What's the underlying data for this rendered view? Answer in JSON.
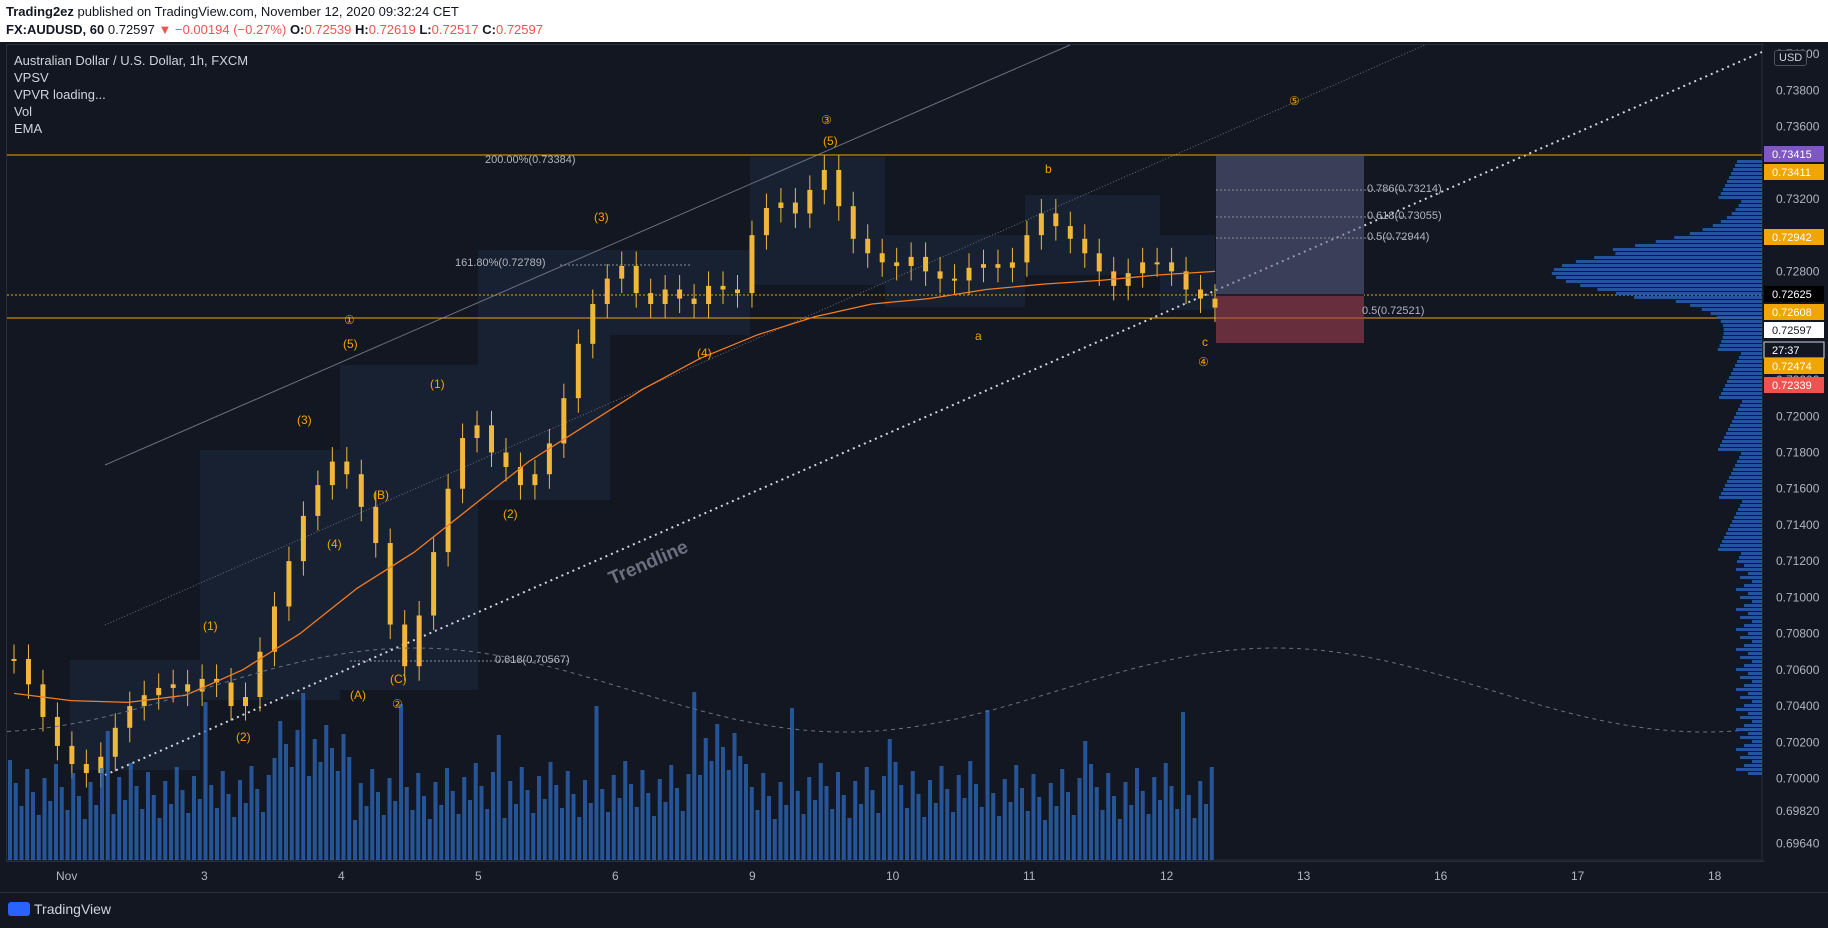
{
  "header": {
    "publisher": "Trading2ez",
    "published_text": "published on TradingView.com, November 12, 2020 09:32:24 CET",
    "symbol": "FX:AUDUSD, 60",
    "last": "0.72597",
    "change": "−0.00194 (−0.27%)",
    "o_label": "O:",
    "o": "0.72539",
    "h_label": "H:",
    "h": "0.72619",
    "l_label": "L:",
    "l": "0.72517",
    "c_label": "C:",
    "c": "0.72597"
  },
  "legend": {
    "title": "Australian Dollar / U.S. Dollar, 1h, FXCM",
    "items": [
      "VPSV",
      "VPVR loading...",
      "Vol",
      "EMA"
    ]
  },
  "currency": "USD",
  "footer": {
    "brand": "TradingView"
  },
  "colors": {
    "up": "#f0b73b",
    "down": "#f0b73b",
    "ema": "#f57c21",
    "vol": "#2e6bbf",
    "hline": "#f0a500",
    "profile": "#2962ff",
    "profile2": "#26a69a"
  },
  "chart_data": {
    "type": "line",
    "title": "Australian Dollar / U.S. Dollar, 1h, FXCM",
    "xlabel": "",
    "ylabel": "",
    "x_ticks": [
      {
        "label": "Nov",
        "day": 2
      },
      {
        "label": "3",
        "day": 3
      },
      {
        "label": "4",
        "day": 4
      },
      {
        "label": "5",
        "day": 5
      },
      {
        "label": "6",
        "day": 6
      },
      {
        "label": "9",
        "day": 9
      },
      {
        "label": "10",
        "day": 10
      },
      {
        "label": "11",
        "day": 11
      },
      {
        "label": "12",
        "day": 12
      },
      {
        "label": "13",
        "day": 13
      },
      {
        "label": "16",
        "day": 16
      },
      {
        "label": "17",
        "day": 17
      },
      {
        "label": "18",
        "day": 18
      }
    ],
    "y_ticks": [
      "0.74000",
      "0.73800",
      "0.73600",
      "0.73200",
      "0.73000",
      "0.72800",
      "0.72200",
      "0.72000",
      "0.71800",
      "0.71600",
      "0.71400",
      "0.71200",
      "0.71000",
      "0.70800",
      "0.70600",
      "0.70400",
      "0.70200",
      "0.70000",
      "0.69820",
      "0.69640"
    ],
    "ylim": [
      0.6955,
      0.7405
    ],
    "price_labels": [
      {
        "value": "0.73415",
        "color": "#7e57c2"
      },
      {
        "value": "0.73411",
        "color": "#f0a500"
      },
      {
        "value": "0.72942",
        "color": "#f0a500"
      },
      {
        "value": "0.72625",
        "color": "#000000"
      },
      {
        "value": "0.72608",
        "color": "#f0a500"
      },
      {
        "value": "0.72597",
        "color": "#ffffff"
      },
      {
        "value": "27:37",
        "color": "#131722"
      },
      {
        "value": "0.72474",
        "color": "#f0a500"
      },
      {
        "value": "0.72339",
        "color": "#ef5350"
      }
    ],
    "close_series": [
      0.7066,
      0.7052,
      0.7034,
      0.7018,
      0.7008,
      0.7003,
      0.7012,
      0.7028,
      0.704,
      0.7046,
      0.705,
      0.7052,
      0.7048,
      0.7055,
      0.7053,
      0.704,
      0.7045,
      0.707,
      0.7095,
      0.712,
      0.7145,
      0.7162,
      0.7175,
      0.7168,
      0.715,
      0.713,
      0.7085,
      0.7062,
      0.709,
      0.7125,
      0.716,
      0.7188,
      0.7195,
      0.718,
      0.7172,
      0.7162,
      0.7168,
      0.7185,
      0.721,
      0.724,
      0.7262,
      0.7276,
      0.7283,
      0.7268,
      0.7262,
      0.727,
      0.7265,
      0.7262,
      0.7272,
      0.727,
      0.7268,
      0.73,
      0.7315,
      0.7318,
      0.7312,
      0.7325,
      0.7336,
      0.7316,
      0.7298,
      0.729,
      0.7285,
      0.7283,
      0.7288,
      0.728,
      0.7276,
      0.7275,
      0.7282,
      0.7284,
      0.7282,
      0.7285,
      0.73,
      0.7312,
      0.7305,
      0.7298,
      0.729,
      0.728,
      0.7272,
      0.7279,
      0.7285,
      0.7285,
      0.728,
      0.727,
      0.7265,
      0.726
    ],
    "ema_series": [
      0.7047,
      0.7043,
      0.7042,
      0.7046,
      0.706,
      0.708,
      0.7105,
      0.7125,
      0.715,
      0.7175,
      0.7195,
      0.7215,
      0.7232,
      0.7245,
      0.7255,
      0.7262,
      0.7265,
      0.727,
      0.7273,
      0.7275,
      0.7278,
      0.728
    ],
    "horizontal_levels": [
      {
        "value": 0.73411,
        "label": "200.00%(0.73384)"
      },
      {
        "value": 0.72625,
        "label": ""
      },
      {
        "value": 0.72474,
        "label": ""
      }
    ],
    "fib_labels": [
      {
        "label": "161.80%(0.72789)"
      },
      {
        "label": "0.618(0.70567)"
      },
      {
        "label": "0.786(0.73214)"
      },
      {
        "label": "0.618(0.73055)"
      },
      {
        "label": "0.5(0.72944)"
      },
      {
        "label": "0.5(0.72521)"
      }
    ],
    "annotations": [
      "Trendline",
      "a",
      "b",
      "c",
      "(1)",
      "(2)",
      "(3)",
      "(4)",
      "(5)",
      "(A)",
      "(B)",
      "(C)",
      "①",
      "②",
      "③",
      "④",
      "⑤"
    ],
    "position_box": {
      "entry": 0.72625,
      "target": 0.73415,
      "stop": 0.72339
    }
  }
}
